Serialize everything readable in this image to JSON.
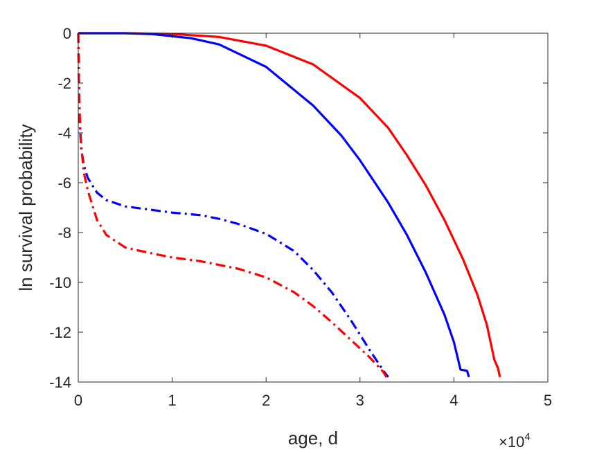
{
  "chart_data": {
    "type": "line",
    "title": "",
    "xlabel": "age, d",
    "ylabel": "ln survival probability",
    "x_exponent_label": {
      "base": "×10",
      "exp": "4"
    },
    "xlim": [
      0,
      50000
    ],
    "ylim": [
      -14,
      0
    ],
    "xtick_values": [
      0,
      10000,
      20000,
      30000,
      40000,
      50000
    ],
    "xtick_labels": [
      "0",
      "1",
      "2",
      "3",
      "4",
      "5"
    ],
    "ytick_values": [
      0,
      -2,
      -4,
      -6,
      -8,
      -10,
      -12,
      -14
    ],
    "ytick_labels": [
      "0",
      "-2",
      "-4",
      "-6",
      "-8",
      "-10",
      "-12",
      "-14"
    ],
    "grid": false,
    "legend": "none",
    "series": [
      {
        "color": "#ff0000",
        "style": "solid",
        "points": [
          [
            0,
            0
          ],
          [
            5000,
            0
          ],
          [
            10000,
            -0.03
          ],
          [
            15000,
            -0.15
          ],
          [
            20000,
            -0.5
          ],
          [
            25000,
            -1.25
          ],
          [
            30000,
            -2.6
          ],
          [
            33000,
            -3.8
          ],
          [
            35000,
            -4.9
          ],
          [
            37000,
            -6.1
          ],
          [
            39000,
            -7.5
          ],
          [
            41000,
            -9.1
          ],
          [
            42500,
            -10.5
          ],
          [
            43500,
            -11.7
          ],
          [
            44300,
            -13.1
          ],
          [
            44700,
            -13.45
          ],
          [
            44900,
            -13.8
          ]
        ]
      },
      {
        "color": "#0000ff",
        "style": "solid",
        "points": [
          [
            0,
            0
          ],
          [
            5000,
            0
          ],
          [
            8000,
            -0.04
          ],
          [
            12000,
            -0.2
          ],
          [
            15000,
            -0.45
          ],
          [
            20000,
            -1.35
          ],
          [
            25000,
            -2.9
          ],
          [
            28000,
            -4.1
          ],
          [
            30000,
            -5.1
          ],
          [
            33000,
            -6.8
          ],
          [
            35000,
            -8.1
          ],
          [
            37000,
            -9.6
          ],
          [
            39000,
            -11.3
          ],
          [
            40000,
            -12.4
          ],
          [
            40700,
            -13.5
          ],
          [
            41400,
            -13.55
          ],
          [
            41600,
            -13.8
          ]
        ]
      },
      {
        "color": "#0000ff",
        "style": "dashdot",
        "points": [
          [
            0,
            0
          ],
          [
            50,
            -1.5
          ],
          [
            150,
            -3.5
          ],
          [
            300,
            -4.6
          ],
          [
            600,
            -5.3
          ],
          [
            1000,
            -5.8
          ],
          [
            2000,
            -6.4
          ],
          [
            3000,
            -6.7
          ],
          [
            5000,
            -6.95
          ],
          [
            8000,
            -7.1
          ],
          [
            10000,
            -7.2
          ],
          [
            13000,
            -7.3
          ],
          [
            15000,
            -7.45
          ],
          [
            17000,
            -7.65
          ],
          [
            20000,
            -8.05
          ],
          [
            23000,
            -8.75
          ],
          [
            25000,
            -9.5
          ],
          [
            27000,
            -10.4
          ],
          [
            29000,
            -11.5
          ],
          [
            31000,
            -12.7
          ],
          [
            32500,
            -13.55
          ],
          [
            33000,
            -13.8
          ]
        ]
      },
      {
        "color": "#ff0000",
        "style": "dashdot",
        "points": [
          [
            0,
            0
          ],
          [
            50,
            -1.5
          ],
          [
            150,
            -3.2
          ],
          [
            300,
            -4.5
          ],
          [
            600,
            -5.6
          ],
          [
            1000,
            -6.3
          ],
          [
            2000,
            -7.5
          ],
          [
            3000,
            -8.1
          ],
          [
            5000,
            -8.6
          ],
          [
            8000,
            -8.85
          ],
          [
            10000,
            -9.0
          ],
          [
            13000,
            -9.15
          ],
          [
            15000,
            -9.3
          ],
          [
            17000,
            -9.45
          ],
          [
            20000,
            -9.8
          ],
          [
            23000,
            -10.4
          ],
          [
            25000,
            -10.95
          ],
          [
            27000,
            -11.6
          ],
          [
            29000,
            -12.3
          ],
          [
            31000,
            -13.0
          ],
          [
            32500,
            -13.6
          ],
          [
            32800,
            -13.8
          ]
        ]
      }
    ]
  }
}
